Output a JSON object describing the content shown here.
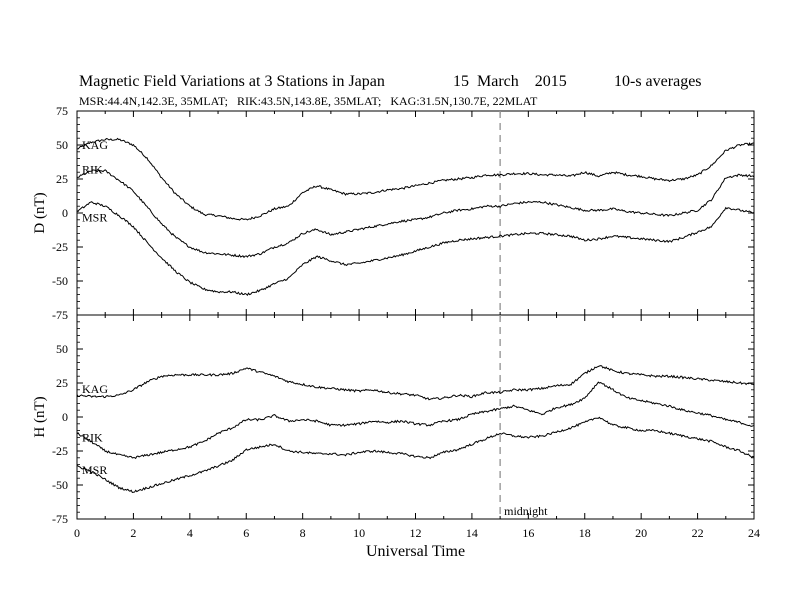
{
  "header": {
    "title": "Magnetic Field Variations at 3 Stations in Japan",
    "date": "15  March    2015",
    "averaging": "10-s averages",
    "stations": "MSR:44.4N,142.3E, 35MLAT;   RIK:43.5N,143.8E, 35MLAT;   KAG:31.5N,130.7E, 22MLAT"
  },
  "chart_data": [
    {
      "type": "line",
      "panel": "D",
      "ylabel": "D (nT)",
      "ylim": [
        -75,
        75
      ],
      "yticks": [
        -75,
        -50,
        -25,
        0,
        25,
        50,
        75
      ],
      "xlim": [
        0,
        24
      ],
      "marker": {
        "x": 15,
        "label": "midnight",
        "style": "dashed"
      },
      "series": [
        {
          "name": "KAG",
          "x": [
            0,
            0.5,
            1,
            1.5,
            2,
            2.5,
            3,
            3.5,
            4,
            4.5,
            5,
            5.5,
            6,
            6.5,
            7,
            7.5,
            8,
            8.5,
            9,
            9.5,
            10,
            10.5,
            11,
            11.5,
            12,
            12.5,
            13,
            13.5,
            14,
            14.5,
            15,
            15.5,
            16,
            16.5,
            17,
            17.5,
            18,
            18.5,
            19,
            19.5,
            20,
            20.5,
            21,
            21.5,
            22,
            22.5,
            23,
            23.5,
            24
          ],
          "y": [
            47,
            52,
            54,
            54,
            50,
            40,
            26,
            14,
            5,
            -1,
            -2,
            -4,
            -5,
            -2,
            3,
            5,
            15,
            20,
            17,
            14,
            14,
            15,
            17,
            18,
            20,
            22,
            24,
            25,
            26,
            28,
            28,
            29,
            29,
            28,
            28,
            27,
            30,
            27,
            30,
            28,
            27,
            25,
            24,
            25,
            28,
            35,
            46,
            50,
            51
          ]
        },
        {
          "name": "RIK",
          "x": [
            0,
            0.5,
            1,
            1.5,
            2,
            2.5,
            3,
            3.5,
            4,
            4.5,
            5,
            5.5,
            6,
            6.5,
            7,
            7.5,
            8,
            8.5,
            9,
            9.5,
            10,
            10.5,
            11,
            11.5,
            12,
            12.5,
            13,
            13.5,
            14,
            14.5,
            15,
            15.5,
            16,
            16.5,
            17,
            17.5,
            18,
            18.5,
            19,
            19.5,
            20,
            20.5,
            21,
            21.5,
            22,
            22.5,
            23,
            23.5,
            24
          ],
          "y": [
            26,
            31,
            31,
            24,
            16,
            4,
            -8,
            -18,
            -25,
            -29,
            -30,
            -31,
            -32,
            -30,
            -25,
            -22,
            -15,
            -12,
            -16,
            -14,
            -12,
            -10,
            -8,
            -6,
            -5,
            -3,
            0,
            2,
            3,
            5,
            5,
            7,
            8,
            8,
            6,
            4,
            2,
            2,
            3,
            1,
            0,
            -1,
            -2,
            0,
            2,
            10,
            26,
            28,
            27
          ]
        },
        {
          "name": "MSR",
          "x": [
            0,
            0.5,
            1,
            1.5,
            2,
            2.5,
            3,
            3.5,
            4,
            4.5,
            5,
            5.5,
            6,
            6.5,
            7,
            7.5,
            8,
            8.5,
            9,
            9.5,
            10,
            10.5,
            11,
            11.5,
            12,
            12.5,
            13,
            13.5,
            14,
            14.5,
            15,
            15.5,
            16,
            16.5,
            17,
            17.5,
            18,
            18.5,
            19,
            19.5,
            20,
            20.5,
            21,
            21.5,
            22,
            22.5,
            23,
            23.5,
            24
          ],
          "y": [
            1,
            8,
            5,
            -2,
            -10,
            -22,
            -33,
            -43,
            -51,
            -56,
            -58,
            -58,
            -60,
            -57,
            -52,
            -48,
            -38,
            -32,
            -35,
            -38,
            -37,
            -35,
            -33,
            -31,
            -28,
            -25,
            -22,
            -20,
            -19,
            -18,
            -17,
            -16,
            -15,
            -15,
            -16,
            -17,
            -20,
            -19,
            -17,
            -18,
            -19,
            -20,
            -21,
            -18,
            -14,
            -10,
            4,
            2,
            0
          ]
        }
      ]
    },
    {
      "type": "line",
      "panel": "H",
      "ylabel": "H (nT)",
      "xlabel": "Universal Time",
      "ylim": [
        -75,
        75
      ],
      "yticks": [
        -75,
        -50,
        -25,
        0,
        25,
        50
      ],
      "xlim": [
        0,
        24
      ],
      "xticks": [
        0,
        2,
        4,
        6,
        8,
        10,
        12,
        14,
        16,
        18,
        20,
        22,
        24
      ],
      "marker": {
        "x": 15,
        "label": "midnight",
        "style": "dashed"
      },
      "series": [
        {
          "name": "KAG",
          "x": [
            0,
            0.5,
            1,
            1.5,
            2,
            2.5,
            3,
            3.5,
            4,
            4.5,
            5,
            5.5,
            6,
            6.5,
            7,
            7.5,
            8,
            8.5,
            9,
            9.5,
            10,
            10.5,
            11,
            11.5,
            12,
            12.5,
            13,
            13.5,
            14,
            14.5,
            15,
            15.5,
            16,
            16.5,
            17,
            17.5,
            18,
            18.5,
            19,
            19.5,
            20,
            20.5,
            21,
            21.5,
            22,
            22.5,
            23,
            23.5,
            24
          ],
          "y": [
            16,
            15,
            15,
            16,
            20,
            26,
            30,
            31,
            31,
            31,
            31,
            32,
            36,
            33,
            30,
            26,
            24,
            22,
            21,
            20,
            19,
            20,
            18,
            17,
            16,
            13,
            14,
            16,
            15,
            18,
            18,
            20,
            20,
            21,
            23,
            24,
            32,
            38,
            34,
            32,
            31,
            30,
            30,
            29,
            28,
            27,
            26,
            25,
            24
          ]
        },
        {
          "name": "RIK",
          "x": [
            0,
            0.5,
            1,
            1.5,
            2,
            2.5,
            3,
            3.5,
            4,
            4.5,
            5,
            5.5,
            6,
            6.5,
            7,
            7.5,
            8,
            8.5,
            9,
            9.5,
            10,
            10.5,
            11,
            11.5,
            12,
            12.5,
            13,
            13.5,
            14,
            14.5,
            15,
            15.5,
            16,
            16.5,
            17,
            17.5,
            18,
            18.5,
            19,
            19.5,
            20,
            20.5,
            21,
            21.5,
            22,
            22.5,
            23,
            23.5,
            24
          ],
          "y": [
            -12,
            -18,
            -25,
            -28,
            -30,
            -28,
            -26,
            -24,
            -22,
            -18,
            -12,
            -8,
            -2,
            -2,
            1,
            -3,
            -2,
            -3,
            -6,
            -6,
            -5,
            -3,
            -4,
            -3,
            -5,
            -6,
            -3,
            -2,
            2,
            4,
            6,
            8,
            5,
            2,
            7,
            9,
            14,
            26,
            20,
            14,
            12,
            10,
            8,
            5,
            3,
            1,
            -2,
            -4,
            -7
          ]
        },
        {
          "name": "MSR",
          "x": [
            0,
            0.5,
            1,
            1.5,
            2,
            2.5,
            3,
            3.5,
            4,
            4.5,
            5,
            5.5,
            6,
            6.5,
            7,
            7.5,
            8,
            8.5,
            9,
            9.5,
            10,
            10.5,
            11,
            11.5,
            12,
            12.5,
            13,
            13.5,
            14,
            14.5,
            15,
            15.5,
            16,
            16.5,
            17,
            17.5,
            18,
            18.5,
            19,
            19.5,
            20,
            20.5,
            21,
            21.5,
            22,
            22.5,
            23,
            23.5,
            24
          ],
          "y": [
            -36,
            -40,
            -46,
            -52,
            -55,
            -52,
            -49,
            -46,
            -43,
            -40,
            -36,
            -32,
            -24,
            -22,
            -20,
            -25,
            -26,
            -27,
            -27,
            -28,
            -26,
            -25,
            -26,
            -27,
            -29,
            -30,
            -26,
            -24,
            -20,
            -16,
            -12,
            -14,
            -15,
            -14,
            -11,
            -8,
            -4,
            0,
            -6,
            -8,
            -10,
            -10,
            -12,
            -14,
            -16,
            -18,
            -22,
            -25,
            -30
          ]
        }
      ]
    }
  ],
  "xaxis": {
    "label": "Universal Time"
  }
}
